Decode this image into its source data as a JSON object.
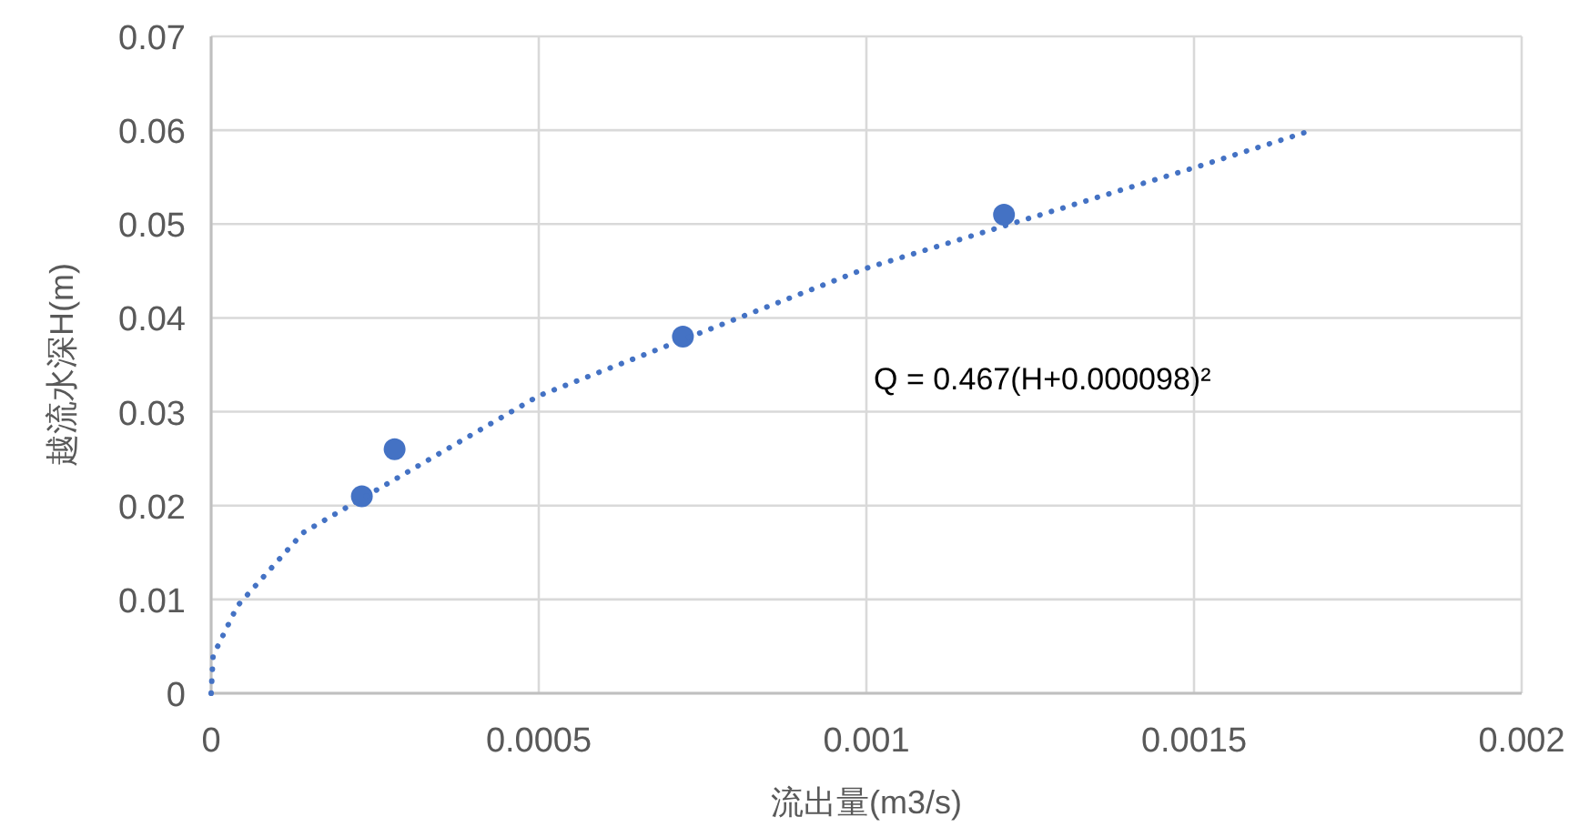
{
  "chart_data": {
    "type": "scatter",
    "xlabel": "流出量(m3/s)",
    "ylabel": "越流水深H(m)",
    "xlim": [
      0,
      0.002
    ],
    "xticks": [
      0,
      0.0005,
      0.001,
      0.0015,
      0.002
    ],
    "ylim": [
      0,
      0.07
    ],
    "yticks": [
      0,
      0.01,
      0.02,
      0.03,
      0.04,
      0.05,
      0.06,
      0.07
    ],
    "grid": true,
    "series": [
      {
        "color": "#4472c4",
        "marker": "circle",
        "x": [
          0.00023,
          0.00028,
          0.00072,
          0.00121
        ],
        "values": [
          0.021,
          0.026,
          0.038,
          0.051
        ]
      },
      {
        "type": "line",
        "color": "#4472c4",
        "marker": "none",
        "line_style": "dotted",
        "x": [
          0,
          3e-06,
          4e-05,
          0.00014,
          0.0005,
          0.001,
          0.0015,
          0.00168
        ],
        "values": [
          0,
          0.004,
          0.0093,
          0.0171,
          0.0317,
          0.0453,
          0.056,
          0.06
        ]
      }
    ],
    "annotations": [
      "Q = 0.467(H+0.000098)²"
    ]
  }
}
